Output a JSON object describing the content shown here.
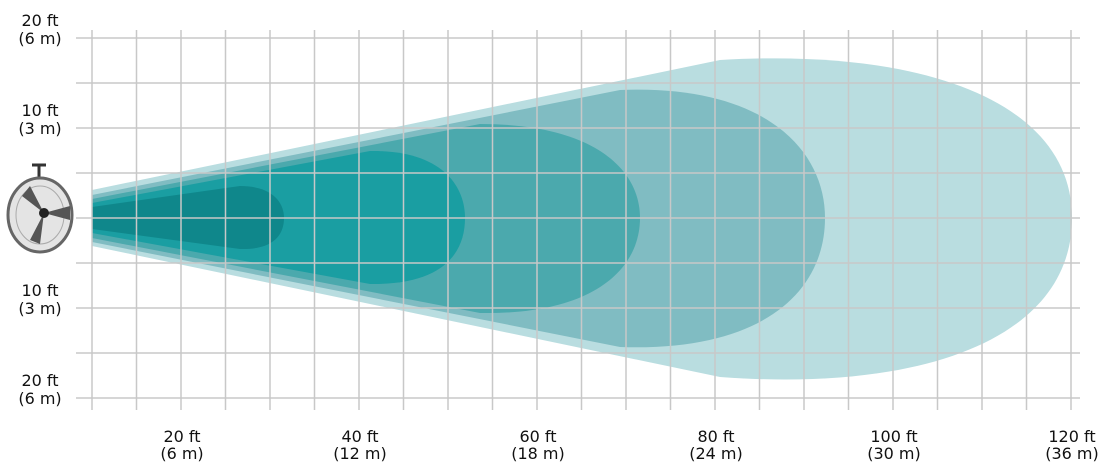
{
  "y_labels": [
    [
      "20 ft",
      "(6 m)"
    ],
    [
      "10 ft",
      "(3 m)"
    ],
    [
      "10 ft",
      "(3 m)"
    ],
    [
      "20 ft",
      "(6 m)"
    ]
  ],
  "x_labels": [
    [
      "20 ft",
      "(6 m)"
    ],
    [
      "40 ft",
      "(12 m)"
    ],
    [
      "60 ft",
      "(18 m)"
    ],
    [
      "80 ft",
      "(24 m)"
    ],
    [
      "100 ft",
      "(30 m)"
    ],
    [
      "120 ft",
      "(36 m)"
    ]
  ]
}
